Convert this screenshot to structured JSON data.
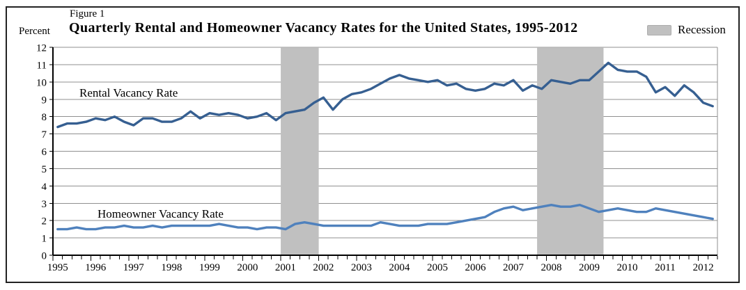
{
  "header": {
    "figure_label": "Figure 1",
    "title": "Quarterly Rental and Homeowner Vacancy Rates for the United States, 1995-2012",
    "y_axis_unit_label": "Percent",
    "legend": {
      "recession_label": "Recession",
      "recession_color": "#c0c0c0"
    }
  },
  "chart_data": {
    "type": "line",
    "x_unit": "quarter",
    "x_start": "1995 Q1",
    "x_end": "2012 Q2",
    "year_tick_labels": [
      "1995",
      "1996",
      "1997",
      "1998",
      "1999",
      "2000",
      "2001",
      "2002",
      "2003",
      "2004",
      "2005",
      "2006",
      "2007",
      "2008",
      "2009",
      "2010",
      "2011",
      "2012"
    ],
    "ylim": [
      0,
      12
    ],
    "y_ticks": [
      0,
      1,
      2,
      3,
      4,
      5,
      6,
      7,
      8,
      9,
      10,
      11,
      12
    ],
    "grid": true,
    "grid_color": "#8f8f8f",
    "axis_color": "#000000",
    "band_color": "#c0c0c0",
    "series": [
      {
        "name": "Rental Vacancy Rate",
        "color": "#365f91",
        "values": [
          7.4,
          7.6,
          7.6,
          7.7,
          7.9,
          7.8,
          8.0,
          7.7,
          7.5,
          7.9,
          7.9,
          7.7,
          7.7,
          7.9,
          8.3,
          7.9,
          8.2,
          8.1,
          8.2,
          8.1,
          7.9,
          8.0,
          8.2,
          7.8,
          8.2,
          8.3,
          8.4,
          8.8,
          9.1,
          8.4,
          9.0,
          9.3,
          9.4,
          9.6,
          9.9,
          10.2,
          10.4,
          10.2,
          10.1,
          10.0,
          10.1,
          9.8,
          9.9,
          9.6,
          9.5,
          9.6,
          9.9,
          9.8,
          10.1,
          9.5,
          9.8,
          9.6,
          10.1,
          10.0,
          9.9,
          10.1,
          10.1,
          10.6,
          11.1,
          10.7,
          10.6,
          10.6,
          10.3,
          9.4,
          9.7,
          9.2,
          9.8,
          9.4,
          8.8,
          8.6
        ]
      },
      {
        "name": "Homeowner Vacancy Rate",
        "color": "#4f81bd",
        "values": [
          1.5,
          1.5,
          1.6,
          1.5,
          1.5,
          1.6,
          1.6,
          1.7,
          1.6,
          1.6,
          1.7,
          1.6,
          1.7,
          1.7,
          1.7,
          1.7,
          1.7,
          1.8,
          1.7,
          1.6,
          1.6,
          1.5,
          1.6,
          1.6,
          1.5,
          1.8,
          1.9,
          1.8,
          1.7,
          1.7,
          1.7,
          1.7,
          1.7,
          1.7,
          1.9,
          1.8,
          1.7,
          1.7,
          1.7,
          1.8,
          1.8,
          1.8,
          1.9,
          2.0,
          2.1,
          2.2,
          2.5,
          2.7,
          2.8,
          2.6,
          2.7,
          2.8,
          2.9,
          2.8,
          2.8,
          2.9,
          2.7,
          2.5,
          2.6,
          2.7,
          2.6,
          2.5,
          2.5,
          2.7,
          2.6,
          2.5,
          2.4,
          2.3,
          2.2,
          2.1
        ]
      }
    ],
    "recession_bands": [
      {
        "from_index": 24,
        "to_index": 27,
        "quarters": "2001 Q1 - 2001 Q4"
      },
      {
        "from_index": 51,
        "to_index": 57,
        "quarters": "2007 Q4 - 2009 Q2"
      }
    ]
  }
}
